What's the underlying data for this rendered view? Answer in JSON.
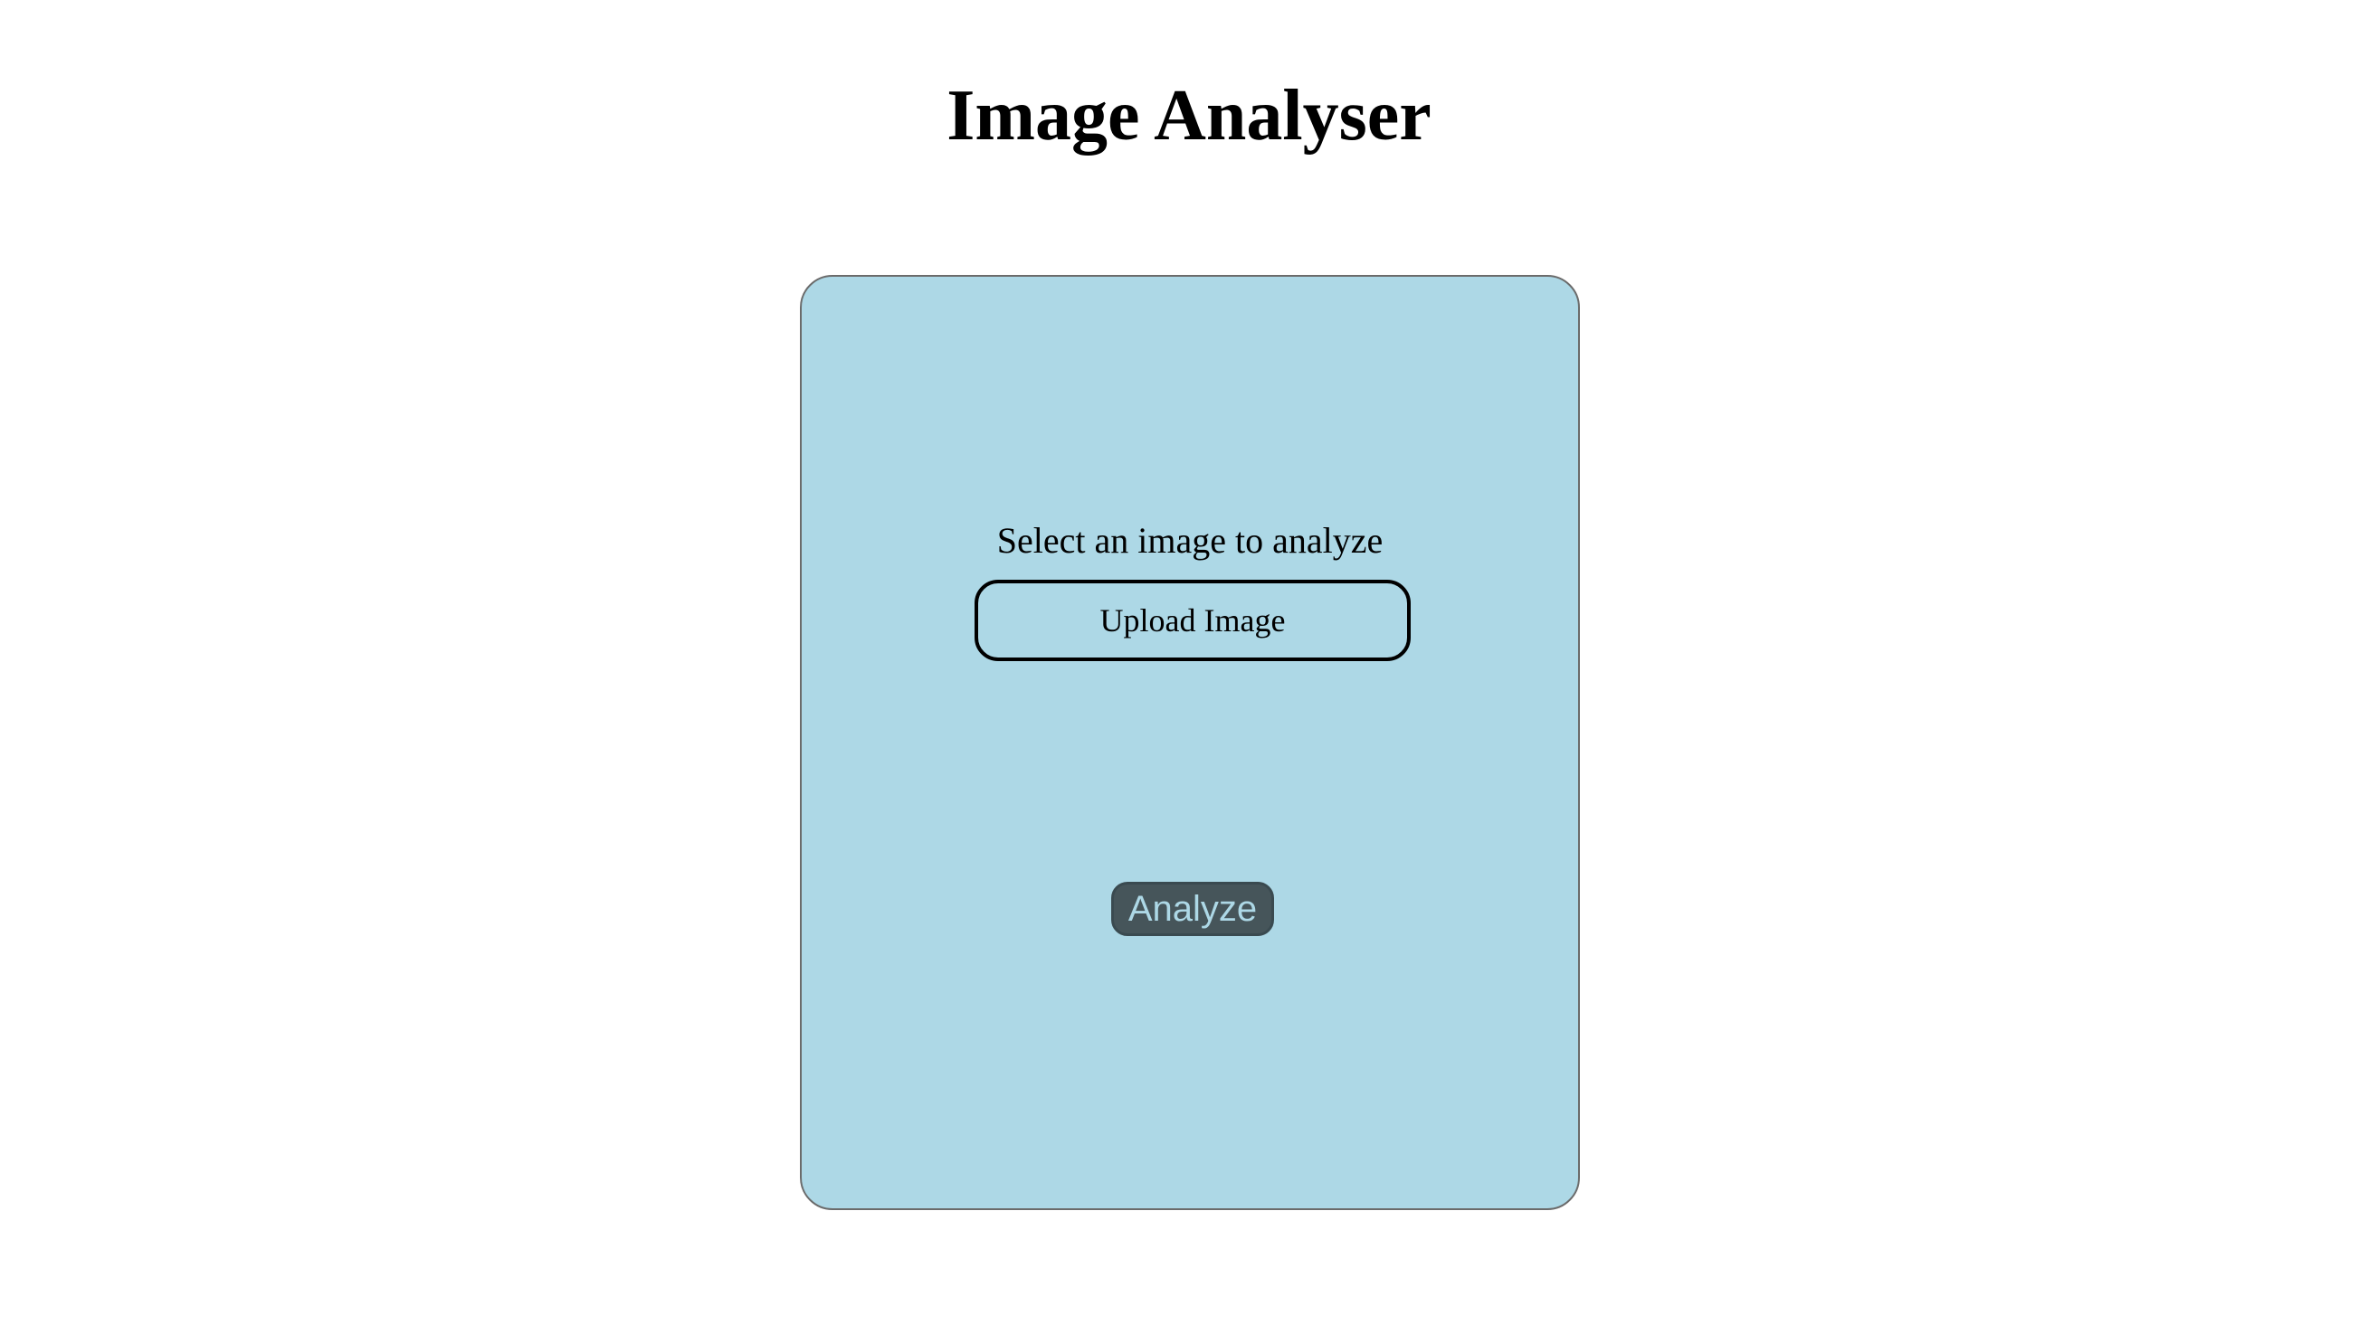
{
  "header": {
    "title": "Image Analyser"
  },
  "card": {
    "prompt": "Select an image to analyze",
    "upload_label": "Upload Image",
    "analyze_label": "Analyze"
  },
  "colors": {
    "card_background": "#add8e6",
    "analyze_background": "#46555a",
    "analyze_text": "#add8e6"
  }
}
